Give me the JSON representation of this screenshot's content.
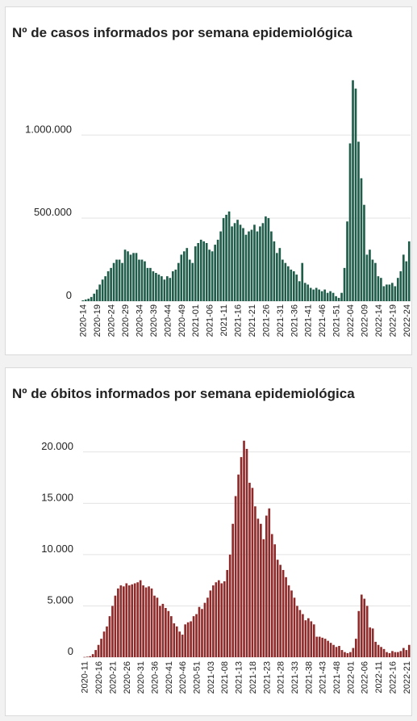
{
  "chart_data": [
    {
      "type": "bar",
      "title": "Nº de casos informados por semana epidemiológica",
      "color": "#1f5c4a",
      "grid_color": "#e3e3e3",
      "ylim": [
        0,
        1400000
      ],
      "yticks": [
        {
          "value": 0,
          "label": "0"
        },
        {
          "value": 500000,
          "label": "500.000"
        },
        {
          "value": 1000000,
          "label": "1.000.000"
        }
      ],
      "start_week": "2020-14",
      "tick_every": 5,
      "xtick_labels": [
        "2020-14",
        "2020-19",
        "2020-24",
        "2020-29",
        "2020-34",
        "2020-39",
        "2020-44",
        "2020-49",
        "2021-01",
        "2021-06",
        "2021-11",
        "2021-16",
        "2021-21",
        "2021-26",
        "2021-31",
        "2021-36",
        "2021-41",
        "2021-46",
        "2021-51",
        "2022-04",
        "2022-09",
        "2022-14",
        "2022-19",
        "2022-24"
      ],
      "values": [
        5000,
        10000,
        15000,
        25000,
        45000,
        70000,
        100000,
        130000,
        150000,
        180000,
        200000,
        230000,
        250000,
        250000,
        230000,
        310000,
        300000,
        280000,
        290000,
        290000,
        250000,
        250000,
        240000,
        200000,
        200000,
        180000,
        170000,
        160000,
        150000,
        130000,
        150000,
        140000,
        180000,
        190000,
        230000,
        280000,
        300000,
        320000,
        250000,
        230000,
        330000,
        350000,
        370000,
        360000,
        350000,
        310000,
        300000,
        340000,
        370000,
        420000,
        500000,
        520000,
        540000,
        450000,
        470000,
        490000,
        460000,
        440000,
        400000,
        420000,
        430000,
        460000,
        420000,
        450000,
        470000,
        510000,
        500000,
        420000,
        360000,
        290000,
        320000,
        250000,
        230000,
        210000,
        190000,
        180000,
        160000,
        120000,
        230000,
        110000,
        100000,
        80000,
        70000,
        80000,
        70000,
        60000,
        70000,
        50000,
        60000,
        50000,
        30000,
        20000,
        50000,
        200000,
        480000,
        950000,
        1330000,
        1280000,
        960000,
        740000,
        580000,
        280000,
        310000,
        250000,
        230000,
        150000,
        140000,
        90000,
        100000,
        100000,
        110000,
        90000,
        140000,
        180000,
        280000,
        240000,
        360000
      ]
    },
    {
      "type": "bar",
      "title": "Nº de óbitos informados por semana epidemiológica",
      "color": "#8e2a2a",
      "grid_color": "#e3e3e3",
      "ylim": [
        0,
        22500
      ],
      "yticks": [
        {
          "value": 0,
          "label": "0"
        },
        {
          "value": 5000,
          "label": "5.000"
        },
        {
          "value": 10000,
          "label": "10.000"
        },
        {
          "value": 15000,
          "label": "15.000"
        },
        {
          "value": 20000,
          "label": "20.000"
        }
      ],
      "start_week": "2020-11",
      "tick_every": 5,
      "xtick_labels": [
        "2020-11",
        "2020-16",
        "2020-21",
        "2020-26",
        "2020-31",
        "2020-36",
        "2020-41",
        "2020-46",
        "2020-51",
        "2021-03",
        "2021-08",
        "2021-13",
        "2021-18",
        "2021-23",
        "2021-28",
        "2021-33",
        "2021-38",
        "2021-43",
        "2021-48",
        "2022-01",
        "2022-06",
        "2022-11",
        "2022-16",
        "2022-21"
      ],
      "values": [
        20,
        50,
        100,
        300,
        700,
        1200,
        1800,
        2500,
        3000,
        4000,
        5000,
        6000,
        6700,
        7000,
        6900,
        7200,
        7000,
        7100,
        7200,
        7300,
        7500,
        7000,
        6800,
        6900,
        6700,
        6000,
        5800,
        5000,
        5200,
        4800,
        4500,
        4000,
        3300,
        3000,
        2500,
        2200,
        3200,
        3400,
        3500,
        4000,
        4200,
        4900,
        4700,
        5300,
        5800,
        6500,
        7000,
        7300,
        7500,
        7200,
        7400,
        8500,
        10000,
        13000,
        15700,
        17800,
        19500,
        21100,
        20300,
        17000,
        16500,
        14700,
        13500,
        13000,
        11500,
        13800,
        14500,
        12000,
        11000,
        9500,
        9000,
        8500,
        7800,
        7000,
        6500,
        5800,
        5000,
        4600,
        4200,
        3600,
        3800,
        3500,
        3200,
        2000,
        2000,
        1900,
        1800,
        1600,
        1400,
        1200,
        1000,
        1100,
        700,
        500,
        400,
        500,
        900,
        1800,
        4500,
        6100,
        5700,
        5000,
        2900,
        2800,
        1500,
        1200,
        1000,
        800,
        500,
        400,
        600,
        500,
        500,
        600,
        900,
        700,
        1200
      ]
    }
  ]
}
